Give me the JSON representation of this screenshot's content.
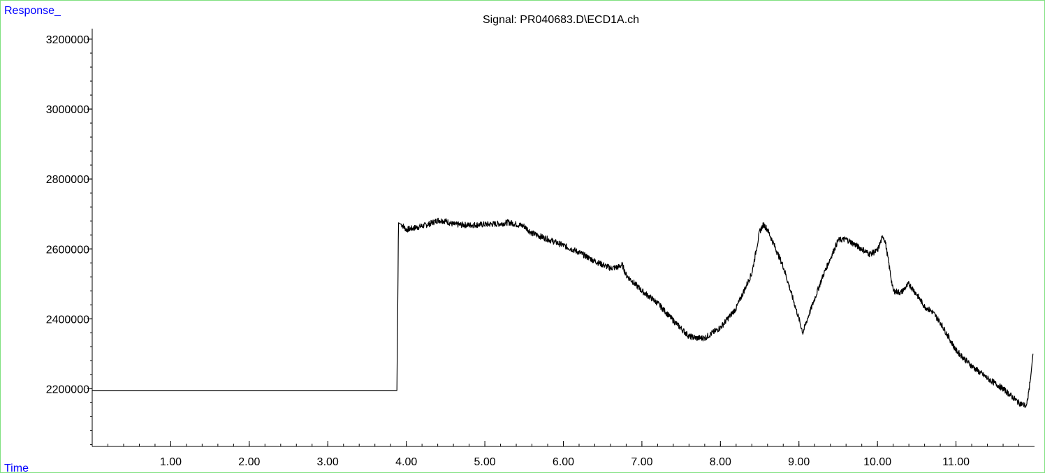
{
  "chart_data": {
    "type": "line",
    "title": "Signal: PR040683.D\\ECD1A.ch",
    "ylabel": "Response_",
    "xlabel": "Time",
    "xlim": [
      0,
      12.0
    ],
    "ylim": [
      2035000,
      3230000
    ],
    "x_ticks": [
      1.0,
      2.0,
      3.0,
      4.0,
      5.0,
      6.0,
      7.0,
      8.0,
      9.0,
      10.0,
      11.0
    ],
    "x_tick_labels": [
      "1.00",
      "2.00",
      "3.00",
      "4.00",
      "5.00",
      "6.00",
      "7.00",
      "8.00",
      "9.00",
      "10.00",
      "11.00"
    ],
    "y_ticks": [
      2200000,
      2400000,
      2600000,
      2800000,
      3000000,
      3200000
    ],
    "y_tick_labels": [
      "2200000",
      "2400000",
      "2600000",
      "2800000",
      "3000000",
      "3200000"
    ],
    "grid": false,
    "colors": {
      "trace": "#000000",
      "axis_label": "#0000ff",
      "frame": "#7fe07f"
    },
    "series": [
      {
        "x": [
          0.0,
          3.88,
          3.89,
          3.9,
          3.95,
          4.0,
          4.1,
          4.2,
          4.3,
          4.4,
          4.5,
          4.6,
          4.8,
          5.0,
          5.2,
          5.3,
          5.5,
          5.6,
          5.8,
          6.0,
          6.2,
          6.4,
          6.6,
          6.7,
          6.75,
          6.8,
          7.0,
          7.2,
          7.4,
          7.6,
          7.7,
          7.8,
          8.0,
          8.2,
          8.4,
          8.5,
          8.55,
          8.6,
          8.8,
          9.0,
          9.05,
          9.1,
          9.3,
          9.5,
          9.6,
          9.8,
          9.9,
          10.0,
          10.07,
          10.1,
          10.2,
          10.3,
          10.4,
          10.5,
          10.6,
          10.7,
          10.8,
          11.0,
          11.2,
          11.4,
          11.6,
          11.8,
          11.9,
          11.95,
          11.98
        ],
        "y": [
          2195000,
          2195000,
          2420000,
          2675000,
          2668000,
          2655000,
          2660000,
          2665000,
          2672000,
          2682000,
          2680000,
          2670000,
          2668000,
          2670000,
          2672000,
          2676000,
          2665000,
          2645000,
          2628000,
          2610000,
          2590000,
          2565000,
          2545000,
          2548000,
          2555000,
          2525000,
          2480000,
          2445000,
          2395000,
          2350000,
          2345000,
          2345000,
          2375000,
          2430000,
          2530000,
          2650000,
          2670000,
          2655000,
          2550000,
          2400000,
          2360000,
          2395000,
          2520000,
          2625000,
          2628000,
          2600000,
          2585000,
          2595000,
          2638000,
          2620000,
          2480000,
          2475000,
          2500000,
          2470000,
          2435000,
          2420000,
          2390000,
          2310000,
          2265000,
          2230000,
          2200000,
          2160000,
          2150000,
          2230000,
          2300000
        ]
      }
    ]
  }
}
